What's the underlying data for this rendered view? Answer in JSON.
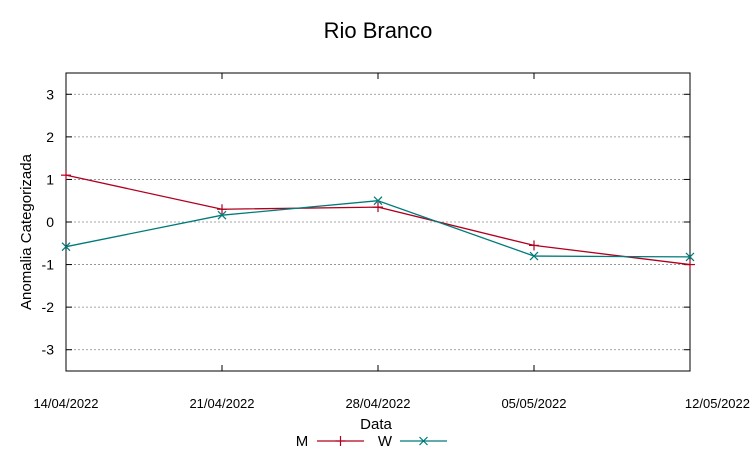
{
  "chart_data": {
    "type": "line",
    "title": "Rio Branco",
    "xlabel": "Data",
    "ylabel": "Anomalia Categorizada",
    "x": [
      "14/04/2022",
      "21/04/2022",
      "28/04/2022",
      "05/05/2022",
      "12/05/2022"
    ],
    "ylim": [
      -3.5,
      3.5
    ],
    "yticks": [
      -3,
      -2,
      -1,
      0,
      1,
      2,
      3
    ],
    "ytick_labels": [
      "-3",
      "-2",
      "-1",
      "0",
      "1",
      "2",
      "3"
    ],
    "grid": true,
    "legend_position": "bottom",
    "series": [
      {
        "name": "M",
        "color": "#b0001e",
        "marker": "plus",
        "values": [
          1.1,
          0.3,
          0.35,
          -0.55,
          -1.0
        ]
      },
      {
        "name": "W",
        "color": "#007a7a",
        "marker": "cross",
        "values": [
          -0.58,
          0.16,
          0.5,
          -0.8,
          -0.82
        ]
      }
    ]
  }
}
